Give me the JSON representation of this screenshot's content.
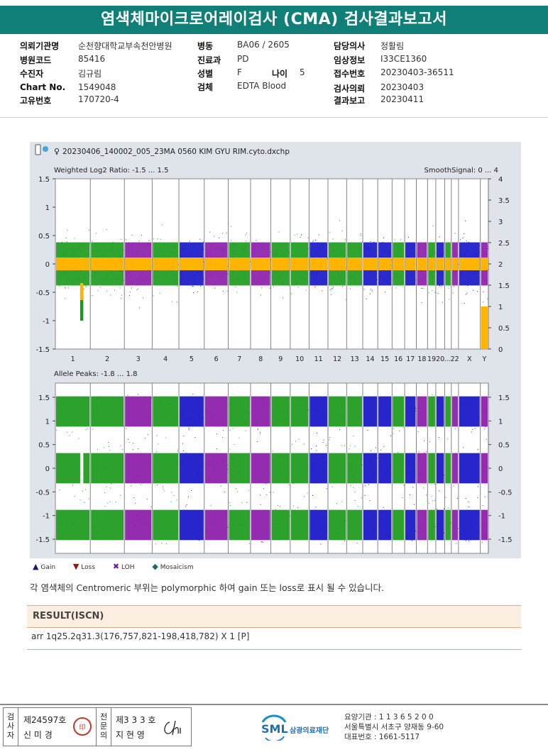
{
  "title": "염색체마이크로어레이검사 (CMA) 검사결과보고서",
  "info": {
    "col1": [
      {
        "label": "의뢰기관명",
        "value": "순천향대학교부속천안병원"
      },
      {
        "label": "병원코드",
        "value": "85416"
      },
      {
        "label": "수진자",
        "value": "김규림"
      },
      {
        "label": "Chart No.",
        "value": "1549048"
      },
      {
        "label": "고유번호",
        "value": "170720-4"
      }
    ],
    "col2": [
      {
        "label": "병동",
        "value": "BA06 / 2605"
      },
      {
        "label": "진료과",
        "value": "PD"
      },
      {
        "label": "성별",
        "value": "F"
      },
      {
        "label": "검체",
        "value": "EDTA Blood"
      }
    ],
    "age_label": "나이",
    "age_value": "5",
    "col3": [
      {
        "label": "담당의사",
        "value": "정활림"
      },
      {
        "label": "임상정보",
        "value": "I33CE1360"
      },
      {
        "label": "접수번호",
        "value": "20230403-36511"
      },
      {
        "label": "검사의뢰",
        "value": "20230403"
      },
      {
        "label": "결과보고",
        "value": "20230411"
      }
    ]
  },
  "plot": {
    "file_name": "20230406_140002_005_23MA 0560 KIM GYU RIM.cyto.dxchp",
    "top_left_label": "Weighted Log2 Ratio: -1.5 ... 1.5",
    "top_right_label": "SmoothSignal: 0 ... 4",
    "bottom_left_label": "Allele Peaks: -1.8 ... 1.8",
    "top_left_ticks": [
      "1.5",
      "1",
      "0.5",
      "0",
      "-0.5",
      "-1",
      "-1.5"
    ],
    "top_right_ticks": [
      "4",
      "3.5",
      "3",
      "2.5",
      "2",
      "1.5",
      "1",
      "0.5",
      "0"
    ],
    "bottom_ticks": [
      "1.5",
      "1",
      "0.5",
      "0",
      "-0.5",
      "-1",
      "-1.5"
    ],
    "chromosomes": [
      "1",
      "2",
      "3",
      "4",
      "5",
      "6",
      "7",
      "8",
      "9",
      "10",
      "11",
      "12",
      "13",
      "14",
      "15",
      "16",
      "17",
      "18",
      "19",
      "20",
      "21",
      "22",
      "X",
      "Y"
    ],
    "chrom_axis_labels": [
      "1",
      "2",
      "3",
      "4",
      "5",
      "6",
      "7",
      "8",
      "9",
      "10",
      "11",
      "12",
      "13",
      "14",
      "15",
      "16",
      "17",
      "18",
      "19",
      "20",
      "...22",
      "X",
      "Y"
    ],
    "colors": {
      "green": "#1a9a1a",
      "blue": "#1414c8",
      "purple": "#8a1aa8",
      "orange": "#ffb400"
    }
  },
  "legend": [
    {
      "icon": "triangle-up",
      "label": "Gain",
      "color": "#1a1a6e"
    },
    {
      "icon": "triangle-down",
      "label": "Loss",
      "color": "#a01010"
    },
    {
      "icon": "x-mark",
      "label": "LOH",
      "color": "#6a1aa0"
    },
    {
      "icon": "diamond",
      "label": "Mosaicism",
      "color": "#1a6a5a"
    }
  ],
  "note": "각 염색체의 Centromeric 부위는 polymorphic 하여 gain 또는 loss로 표시 될 수 있습니다.",
  "result": {
    "header": "RESULT(ISCN)",
    "value": "arr 1q25.2q31.3(176,757,821-198,418,782) X 1 [P]"
  },
  "signatures": {
    "tester_label": "검사자",
    "tester_no": "제24597호",
    "tester_name": "신 미 경",
    "reviewer_label": "전문의",
    "reviewer_no": "제3 3 3 호",
    "reviewer_name": "지 현 영"
  },
  "footer": {
    "logo_text": "SML",
    "org_name": "삼광의료재단",
    "line1": "요양기관 : 1 1 3 6 5 2 0 0",
    "line2": "서울특별시 서초구 양재동 9-60",
    "line3": "대표번호 : 1661-5117"
  }
}
